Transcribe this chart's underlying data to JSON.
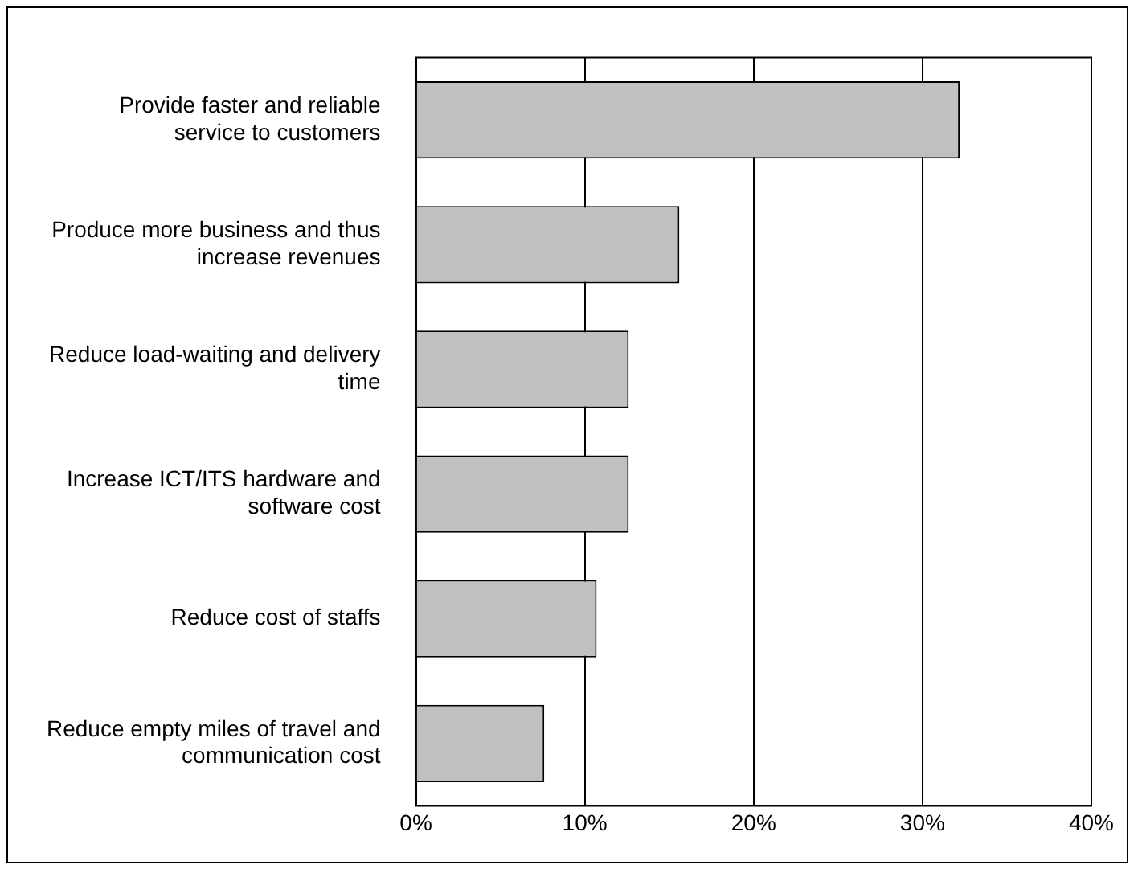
{
  "chart_data": {
    "type": "bar",
    "orientation": "horizontal",
    "categories": [
      "Provide faster and reliable service to customers",
      "Produce more business and thus increase revenues",
      "Reduce load-waiting and delivery time",
      "Increase ICT/ITS hardware and software cost",
      "Reduce cost of staffs",
      "Reduce empty miles of travel and communication cost"
    ],
    "values": [
      32.2,
      15.6,
      12.6,
      12.6,
      10.7,
      7.6
    ],
    "color": "#c0c0c0",
    "xlim": [
      0,
      40
    ],
    "xticks": [
      {
        "value": 0,
        "label": "0%"
      },
      {
        "value": 10,
        "label": "10%"
      },
      {
        "value": 20,
        "label": "20%"
      },
      {
        "value": 30,
        "label": "30%"
      },
      {
        "value": 40,
        "label": "40%"
      }
    ],
    "grid": "x",
    "legend": false
  }
}
